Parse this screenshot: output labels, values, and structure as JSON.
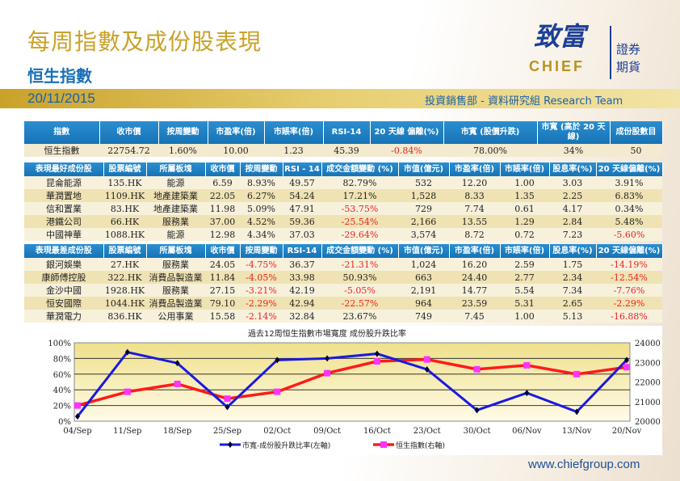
{
  "header": {
    "title": "每周指數及成份股表現",
    "subtitle": "恒生指數",
    "date": "20/11/2015",
    "dept": "投資銷售部 - 資料研究組  Research Team",
    "logo": {
      "zh": "致富",
      "en": "CHIEF",
      "side": [
        "證券",
        "期貨"
      ]
    }
  },
  "index_table": {
    "headers": [
      "指數",
      "收市價",
      "按周變動",
      "市盈率(倍)",
      "市賬率(倍)",
      "RSI-14",
      "20 天線 偏離(%)",
      "市寬 (股價升跌)",
      "市寬 (高於 20 天線)",
      "成份股數目"
    ],
    "rows": [
      [
        "恒生指數",
        "22754.72",
        "1.60%",
        "10.00",
        "1.23",
        "45.39",
        "-0.84%",
        "78.00%",
        "34%",
        "50"
      ]
    ]
  },
  "best_table": {
    "headers": [
      "表現最好成份股",
      "股票編號",
      "所屬板塊",
      "收市價",
      "按周變動",
      "RSI - 14",
      "成交金額變動 (%)",
      "市值(億元)",
      "市盈率(倍)",
      "市賬率(倍)",
      "股息率(%)",
      "20 天線偏離(%)"
    ],
    "rows": [
      [
        "昆侖能源",
        "135.HK",
        "能源",
        "6.59",
        "8.93%",
        "49.57",
        "82.79%",
        "532",
        "12.20",
        "1.00",
        "3.03",
        "3.91%"
      ],
      [
        "華潤置地",
        "1109.HK",
        "地產建築業",
        "22.05",
        "6.27%",
        "54.24",
        "17.21%",
        "1,528",
        "8.33",
        "1.35",
        "2.25",
        "6.83%"
      ],
      [
        "信和置業",
        "83.HK",
        "地產建築業",
        "11.98",
        "5.09%",
        "47.91",
        "-53.75%",
        "729",
        "7.74",
        "0.61",
        "4.17",
        "0.34%"
      ],
      [
        "港鐵公司",
        "66.HK",
        "服務業",
        "37.00",
        "4.52%",
        "59.36",
        "-25.54%",
        "2,166",
        "13.55",
        "1.29",
        "2.84",
        "5.48%"
      ],
      [
        "中國神華",
        "1088.HK",
        "能源",
        "12.98",
        "4.34%",
        "37.03",
        "-29.64%",
        "3,574",
        "8.72",
        "0.72",
        "7.23",
        "-5.60%"
      ]
    ]
  },
  "worst_table": {
    "headers": [
      "表現最差成份股",
      "股票編號",
      "所屬板塊",
      "收市價",
      "按周變動",
      "RSI-14",
      "成交金額變動 (%)",
      "市值(億元)",
      "市盈率(倍)",
      "市賬率(倍)",
      "股息率(%)",
      "20 天線偏離(%)"
    ],
    "rows": [
      [
        "銀河娛樂",
        "27.HK",
        "服務業",
        "24.05",
        "-4.75%",
        "36.37",
        "-21.31%",
        "1,024",
        "16.20",
        "2.59",
        "1.75",
        "-14.19%"
      ],
      [
        "康師傅控股",
        "322.HK",
        "消費品製造業",
        "11.84",
        "-4.05%",
        "33.98",
        "50.93%",
        "663",
        "24.40",
        "2.77",
        "2.34",
        "-12.54%"
      ],
      [
        "金沙中國",
        "1928.HK",
        "服務業",
        "27.15",
        "-3.21%",
        "42.19",
        "-5.05%",
        "2,191",
        "14.77",
        "5.54",
        "7.34",
        "-7.76%"
      ],
      [
        "恒安國際",
        "1044.HK",
        "消費品製造業",
        "79.10",
        "-2.29%",
        "42.94",
        "-22.57%",
        "964",
        "23.59",
        "5.31",
        "2.65",
        "-2.29%"
      ],
      [
        "華潤電力",
        "836.HK",
        "公用事業",
        "15.58",
        "-2.14%",
        "32.84",
        "23.67%",
        "749",
        "7.45",
        "1.00",
        "5.13",
        "-16.88%"
      ]
    ]
  },
  "chart_data": {
    "type": "line",
    "title": "過去12周恒生指數市場寬度 成份股升跌比率",
    "categories": [
      "04/Sep",
      "11/Sep",
      "18/Sep",
      "25/Sep",
      "02/Oct",
      "09/Oct",
      "16/Oct",
      "23/Oct",
      "30/Oct",
      "06/Nov",
      "13/Nov",
      "20/Nov"
    ],
    "series": [
      {
        "name": "市寬-成份股升跌比率(左軸)",
        "axis": "left",
        "color": "#1a1ae0",
        "values": [
          6,
          88,
          74,
          18,
          78,
          80,
          86,
          66,
          14,
          36,
          12,
          78
        ]
      },
      {
        "name": "恒生指數(右軸)",
        "axis": "right",
        "color": "#ff1a1a",
        "marker_color": "#ff33ff",
        "values": [
          20800,
          21500,
          21900,
          21150,
          21500,
          22450,
          23050,
          23150,
          22650,
          22850,
          22400,
          22754.72
        ]
      }
    ],
    "y_left": {
      "range": [
        0,
        100
      ],
      "ticks": [
        "0%",
        "20%",
        "40%",
        "60%",
        "80%",
        "100%"
      ]
    },
    "y_right": {
      "range": [
        20000,
        24000
      ],
      "ticks": [
        "20000",
        "21000",
        "22000",
        "23000",
        "24000"
      ]
    },
    "grid": true,
    "legend": "bottom"
  },
  "footer": {
    "url": "www.chiefgroup.com"
  }
}
